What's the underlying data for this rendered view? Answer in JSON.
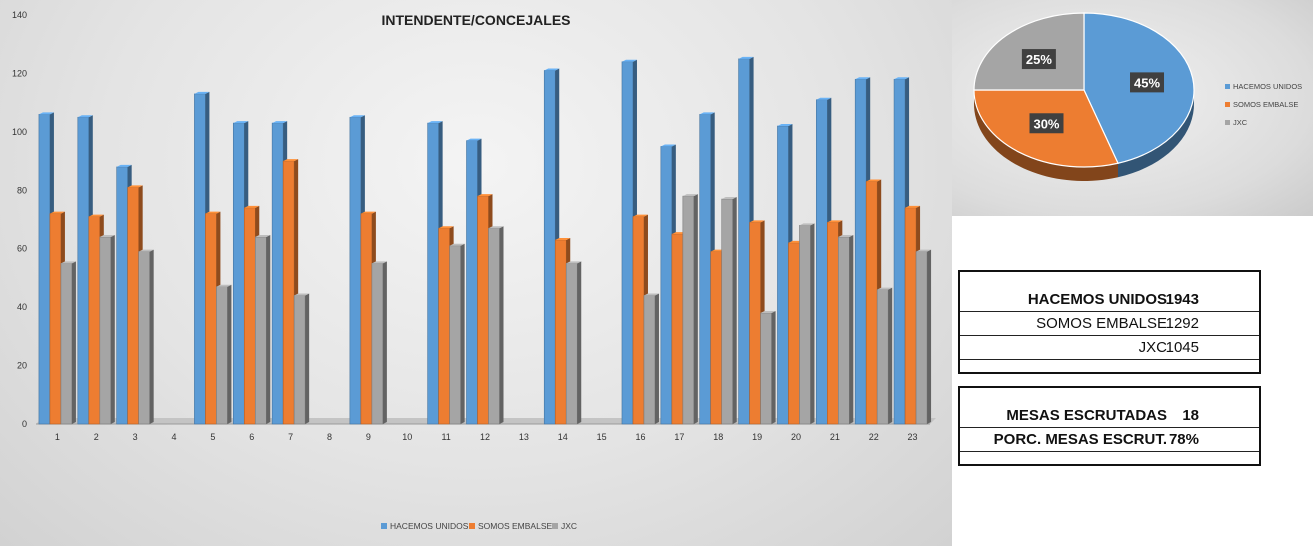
{
  "chart_data": [
    {
      "type": "bar",
      "title": "INTENDENTE/CONCEJALES",
      "categories": [
        "1",
        "2",
        "3",
        "4",
        "5",
        "6",
        "7",
        "8",
        "9",
        "10",
        "11",
        "12",
        "13",
        "14",
        "15",
        "16",
        "17",
        "18",
        "19",
        "20",
        "21",
        "22",
        "23"
      ],
      "series": [
        {
          "name": "HACEMOS UNIDOS",
          "values": [
            106,
            105,
            88,
            null,
            113,
            103,
            103,
            null,
            105,
            null,
            103,
            97,
            null,
            121,
            null,
            124,
            95,
            106,
            125,
            102,
            111,
            118,
            118
          ]
        },
        {
          "name": "SOMOS EMBALSE",
          "values": [
            72,
            71,
            81,
            null,
            72,
            74,
            90,
            null,
            72,
            null,
            67,
            78,
            null,
            63,
            null,
            71,
            65,
            59,
            69,
            62,
            69,
            83,
            74
          ]
        },
        {
          "name": "JXC",
          "values": [
            55,
            64,
            59,
            null,
            47,
            64,
            44,
            null,
            55,
            null,
            61,
            67,
            null,
            55,
            null,
            44,
            78,
            77,
            38,
            68,
            64,
            46,
            59
          ]
        }
      ],
      "ylim": [
        0,
        140
      ],
      "yticks": [
        0,
        20,
        40,
        60,
        80,
        100,
        120,
        140
      ],
      "xlabel": "",
      "ylabel": "",
      "legend": "bottom-center"
    },
    {
      "type": "pie",
      "labels": [
        "HACEMOS UNIDOS",
        "SOMOS EMBALSE",
        "JXC"
      ],
      "values": [
        45,
        30,
        25
      ],
      "value_labels": [
        "45%",
        "30%",
        "25%"
      ],
      "legend": "right"
    }
  ],
  "colors": {
    "hacemos": "#5b9bd5",
    "somos": "#ed7d31",
    "jxc": "#a5a5a5"
  },
  "totals": {
    "rows": [
      {
        "label": "HACEMOS UNIDOS",
        "value": "1943"
      },
      {
        "label": "SOMOS EMBALSE",
        "value": "1292"
      },
      {
        "label": "JXC",
        "value": "1045"
      }
    ]
  },
  "mesas": {
    "escrutadas_label": "MESAS ESCRUTADAS",
    "escrutadas_value": "18",
    "porc_label": "PORC. MESAS ESCRUT.",
    "porc_value": "78%"
  }
}
